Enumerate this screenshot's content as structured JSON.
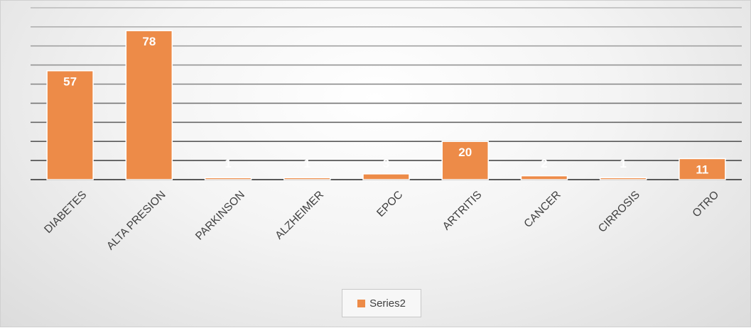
{
  "chart_data": {
    "type": "bar",
    "categories": [
      "DIABETES",
      "ALTA PRESION",
      "PARKINSON",
      "ALZHEIMER",
      "EPOC",
      "ARTRITIS",
      "CANCER",
      "CIRROSIS",
      "OTRO"
    ],
    "series": [
      {
        "name": "Series2",
        "values": [
          57,
          78,
          1,
          1,
          3,
          20,
          2,
          1,
          11
        ],
        "color": "#ED8B48"
      }
    ],
    "ylim": [
      0,
      90
    ],
    "grid": true,
    "legend": "bottom"
  }
}
